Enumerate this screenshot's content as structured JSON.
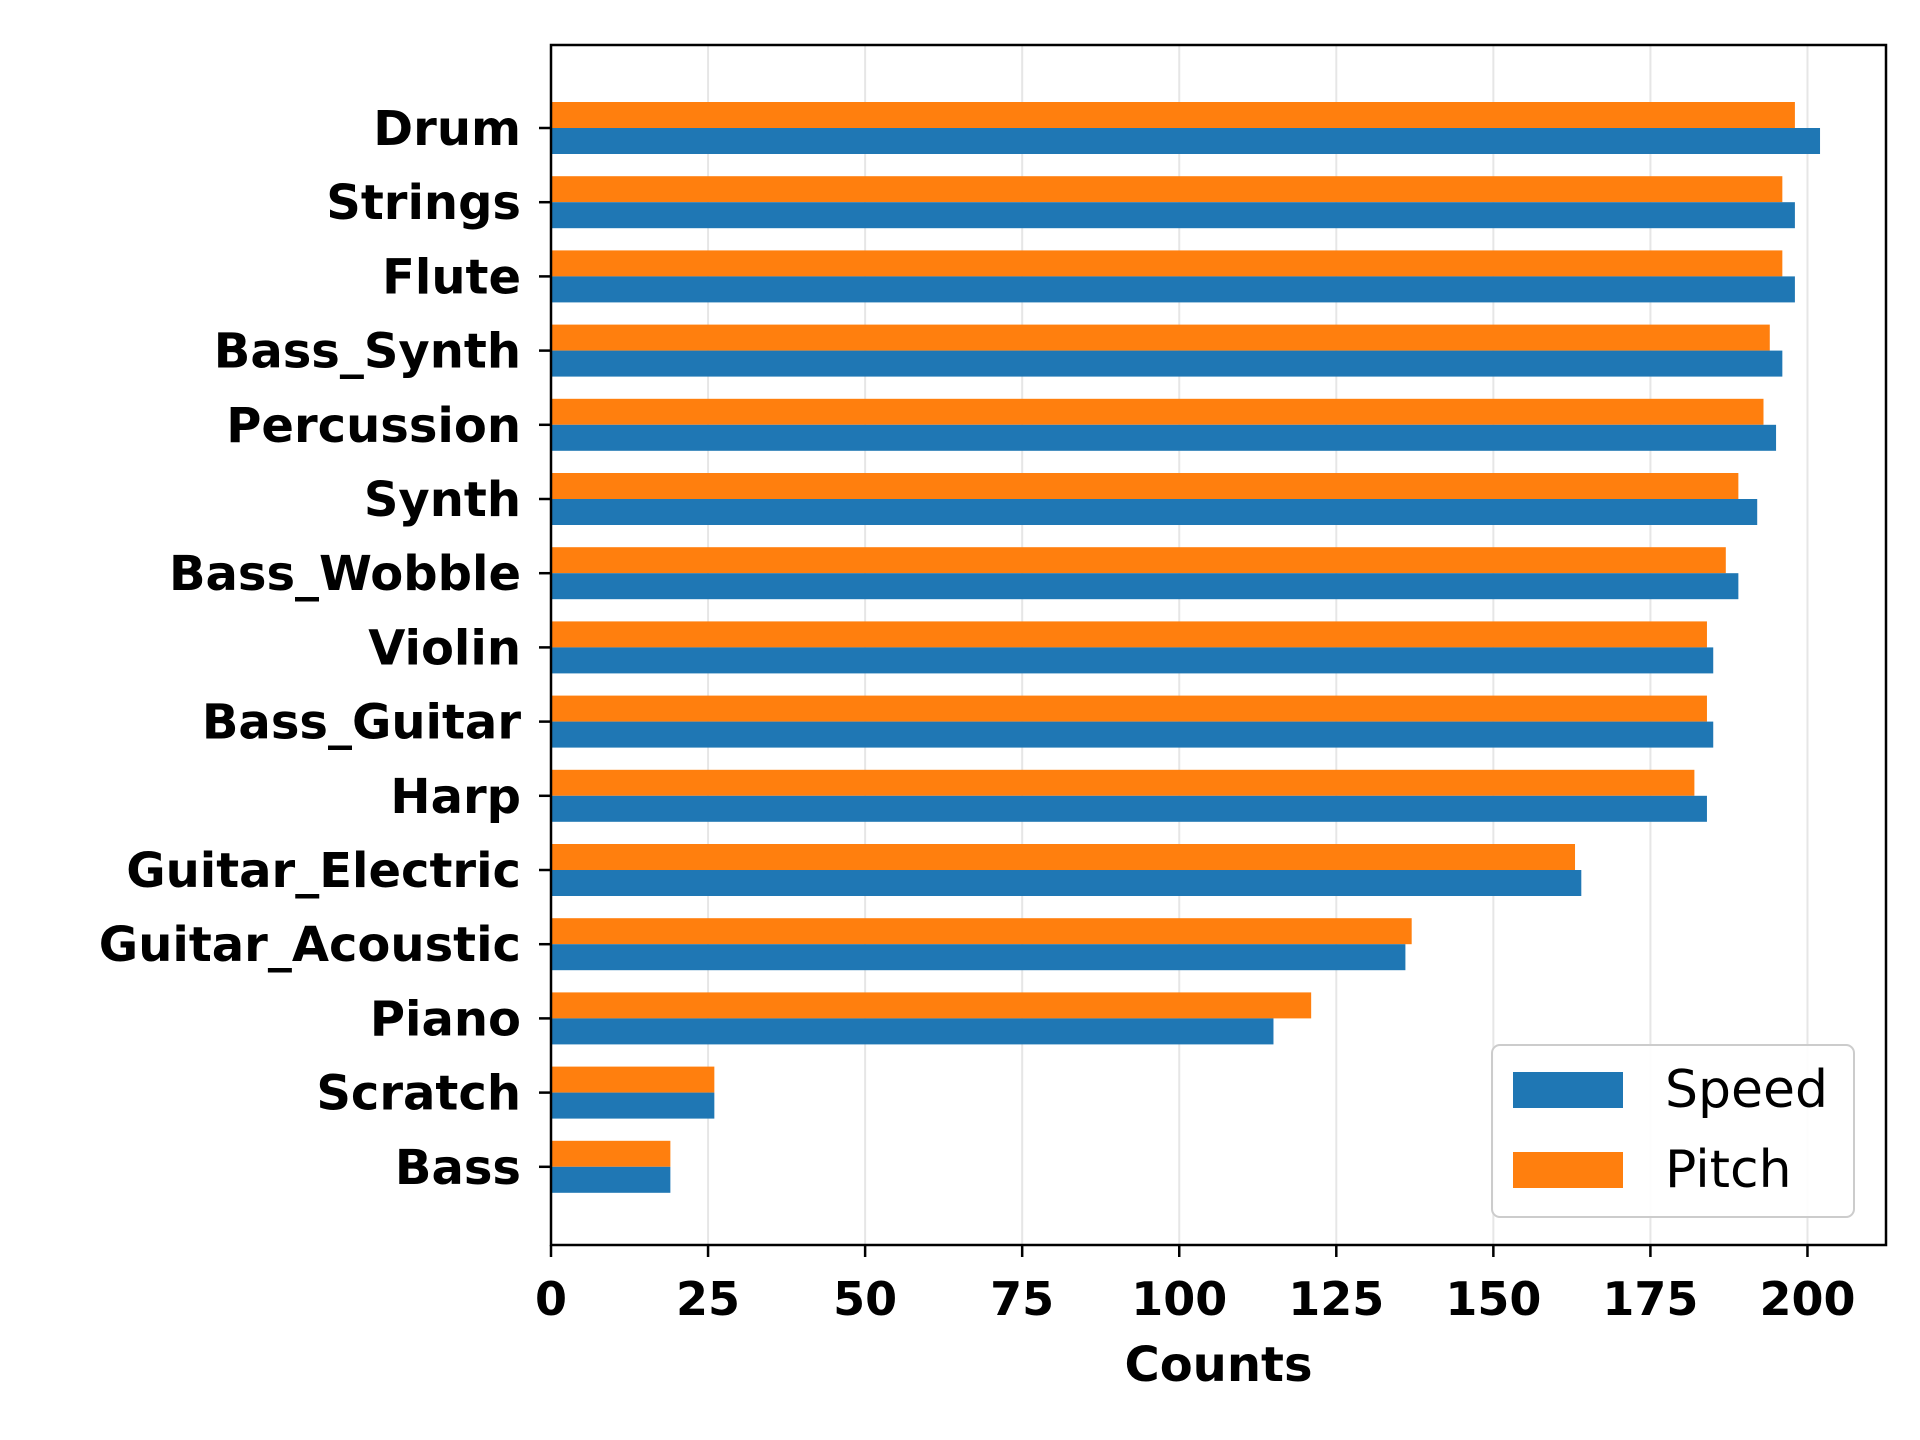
{
  "chart_data": {
    "type": "bar",
    "orientation": "horizontal",
    "categories": [
      "Drum",
      "Strings",
      "Flute",
      "Bass_Synth",
      "Percussion",
      "Synth",
      "Bass_Wobble",
      "Violin",
      "Bass_Guitar",
      "Harp",
      "Guitar_Electric",
      "Guitar_Acoustic",
      "Piano",
      "Scratch",
      "Bass"
    ],
    "series": [
      {
        "name": "Speed",
        "color": "#1f77b4",
        "values": [
          202,
          198,
          198,
          196,
          195,
          192,
          189,
          185,
          185,
          184,
          164,
          136,
          115,
          26,
          19
        ]
      },
      {
        "name": "Pitch",
        "color": "#ff7f0e",
        "values": [
          198,
          196,
          196,
          194,
          193,
          189,
          187,
          184,
          184,
          182,
          163,
          137,
          121,
          26,
          19
        ]
      }
    ],
    "xlabel": "Counts",
    "ylabel": "",
    "xlim": [
      0,
      212.5
    ],
    "xticks": [
      0,
      25,
      50,
      75,
      100,
      125,
      150,
      175,
      200
    ],
    "grid": "x",
    "legend_position": "lower-right"
  }
}
